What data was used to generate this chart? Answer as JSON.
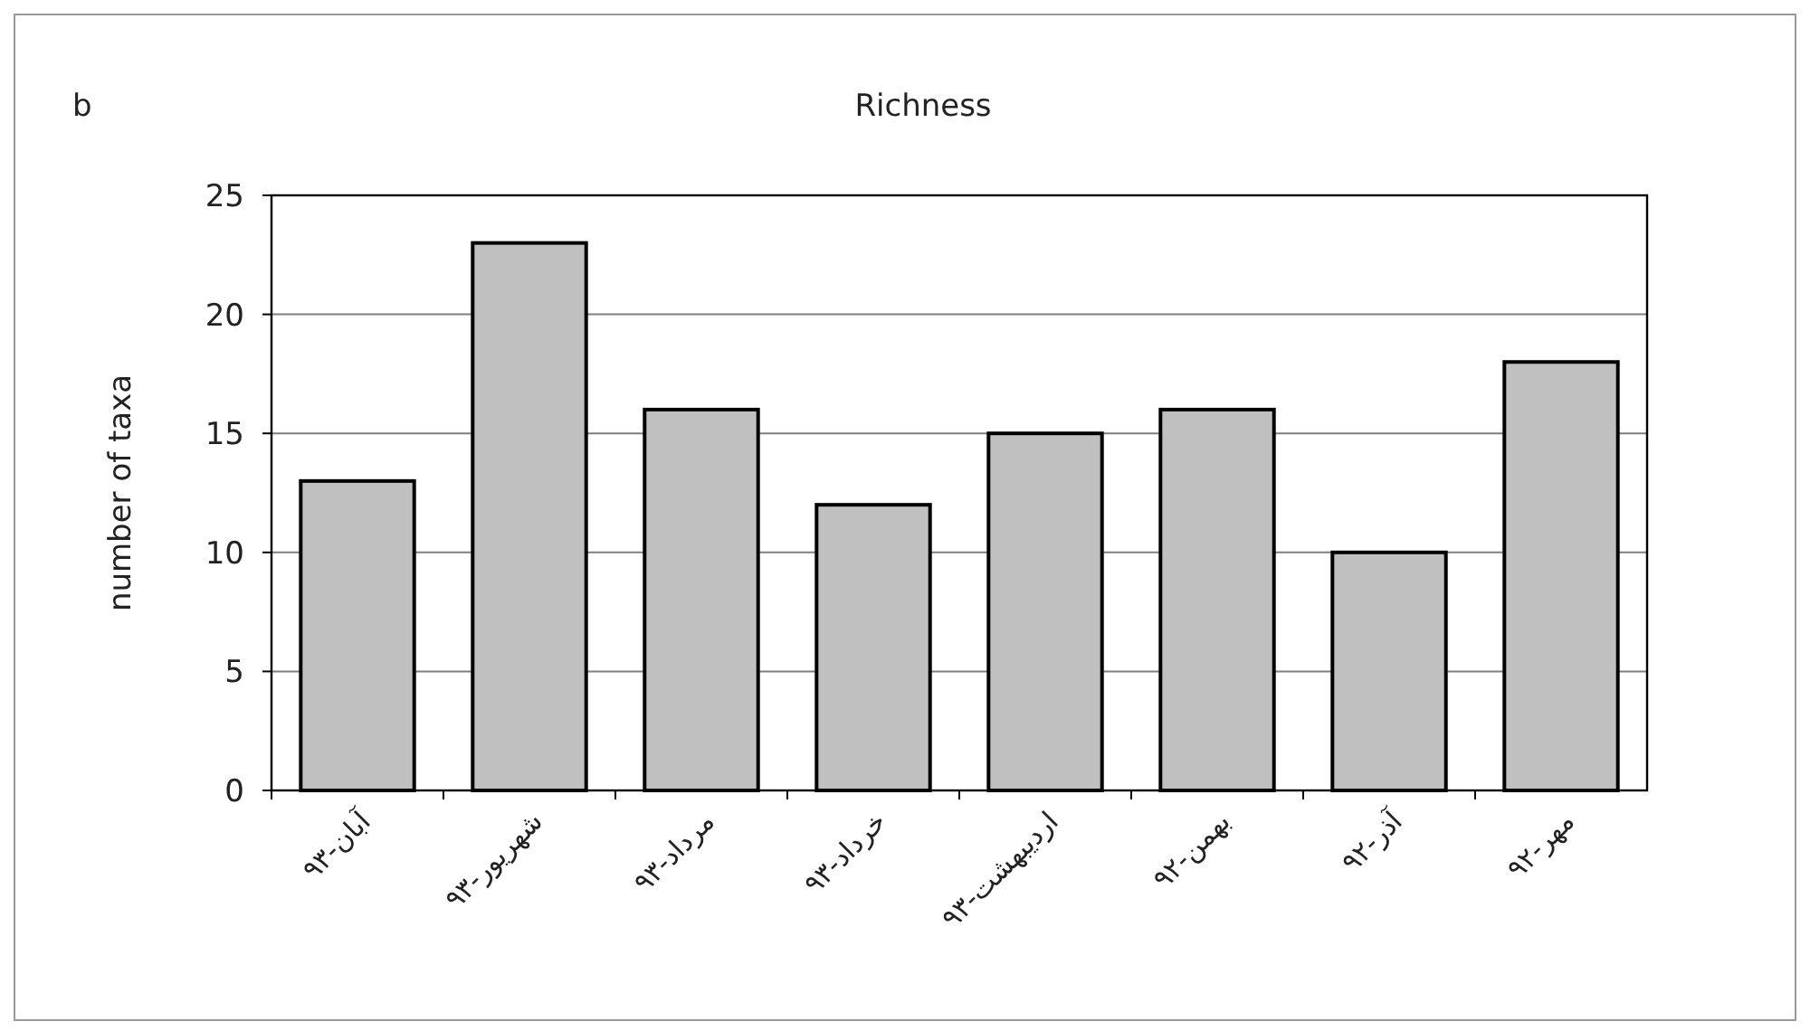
{
  "chart_data": {
    "type": "bar",
    "title": "Richness",
    "ylabel": "number of taxa",
    "annotations": [
      "b"
    ],
    "categories": [
      "آبان-۹۳",
      "شهریور-۹۳",
      "مرداد-۹۳",
      "خرداد-۹۳",
      "اردیبهشت-۹۳",
      "بهمن-۹۲",
      "آذر-۹۲",
      "مهر-۹۲"
    ],
    "values": [
      13,
      23,
      16,
      12,
      15,
      16,
      10,
      18
    ],
    "color": "#c0c0c0",
    "ylim": [
      0,
      25
    ],
    "yticks": [
      0,
      5,
      10,
      15,
      20,
      25
    ],
    "grid": "y"
  }
}
